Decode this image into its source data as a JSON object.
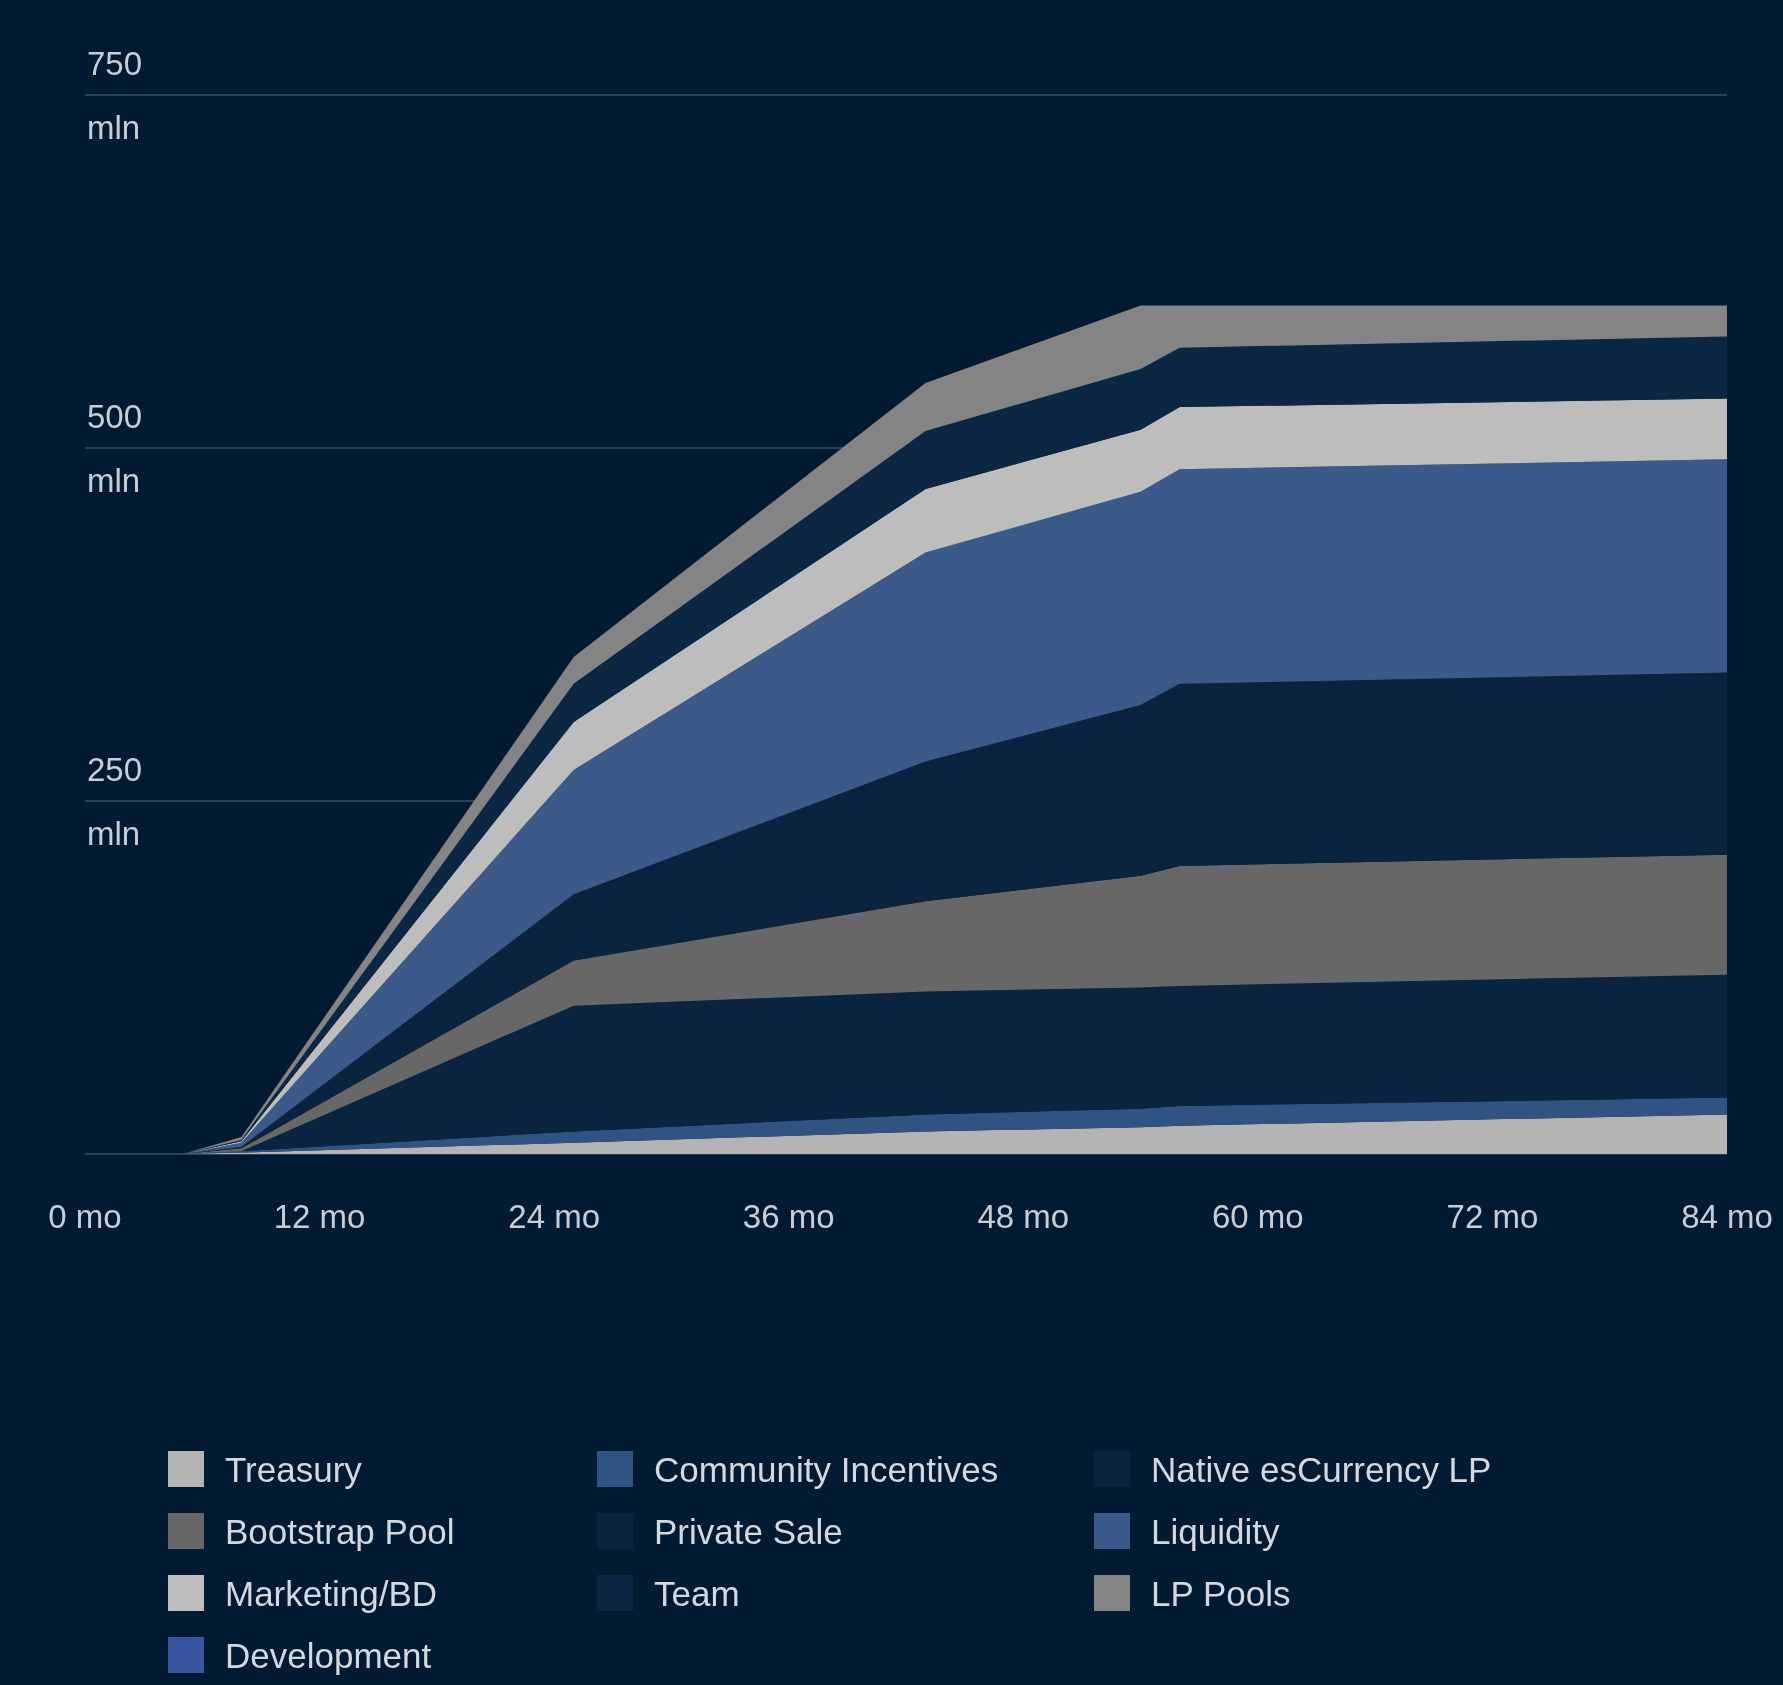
{
  "chart_data": {
    "type": "area",
    "stacked": true,
    "x": [
      5,
      8,
      25,
      43,
      54,
      56,
      84
    ],
    "xlim": [
      0,
      84
    ],
    "xticks": [
      {
        "value": 0,
        "label": "0 mo"
      },
      {
        "value": 12,
        "label": "12 mo"
      },
      {
        "value": 24,
        "label": "24 mo"
      },
      {
        "value": 36,
        "label": "36 mo"
      },
      {
        "value": 48,
        "label": "48 mo"
      },
      {
        "value": 60,
        "label": "60 mo"
      },
      {
        "value": 72,
        "label": "72 mo"
      },
      {
        "value": 84,
        "label": "84 mo"
      }
    ],
    "ylim": [
      0,
      750
    ],
    "yticks": [
      {
        "value": 0,
        "label": null
      },
      {
        "value": 250,
        "label": "250 mln"
      },
      {
        "value": 500,
        "label": "500 mln"
      },
      {
        "value": 750,
        "label": "750 mln"
      }
    ],
    "grid": "y",
    "legend": "bottom",
    "series": [
      {
        "name": "Treasury",
        "color": "#b4b4b4",
        "values": [
          0,
          1,
          8,
          16,
          19,
          20,
          28
        ]
      },
      {
        "name": "Community Incentives",
        "color": "#2f5482",
        "values": [
          0,
          1,
          8,
          12,
          13,
          14,
          12
        ]
      },
      {
        "name": "Native esCurrency LP",
        "color": "#0b2541",
        "values": [
          0,
          0,
          89,
          87,
          86,
          85,
          87
        ]
      },
      {
        "name": "Bootstrap Pool",
        "color": "#676767",
        "values": [
          0,
          2,
          32,
          64,
          79,
          85,
          85
        ]
      },
      {
        "name": "Private Sale",
        "color": "#0a2440",
        "values": [
          0,
          1,
          47,
          99,
          121,
          129,
          129
        ]
      },
      {
        "name": "Liquidity",
        "color": "#3b5a8a",
        "values": [
          0,
          3,
          88,
          148,
          151,
          152,
          151
        ]
      },
      {
        "name": "Marketing/BD",
        "color": "#bdbdbd",
        "values": [
          0,
          1,
          34,
          45,
          44,
          44,
          43
        ]
      },
      {
        "name": "Team",
        "color": "#0c2743",
        "values": [
          0,
          1,
          27,
          41,
          43,
          42,
          44
        ]
      },
      {
        "name": "LP Pools",
        "color": "#848484",
        "values": [
          0,
          2,
          19,
          34,
          45,
          30,
          22
        ]
      },
      {
        "name": "Development",
        "color": "#3a55a0",
        "values": [
          null,
          null,
          null,
          null,
          null,
          null,
          null
        ]
      }
    ]
  }
}
